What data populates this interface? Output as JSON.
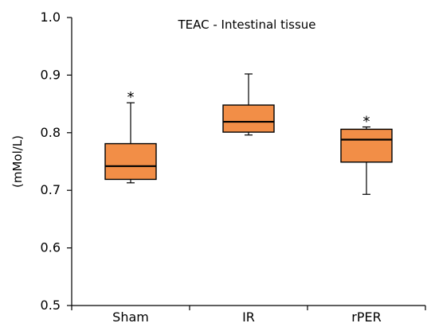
{
  "chart_data": {
    "type": "box",
    "title": "TEAC - Intestinal tissue",
    "xlabel": "",
    "ylabel": "(mMol/L)",
    "ylim": [
      0.5,
      1.0
    ],
    "yticks": [
      0.5,
      0.6,
      0.7,
      0.8,
      0.9,
      1.0
    ],
    "ytick_labels": [
      "0.5",
      "0.6",
      "0.7",
      "0.8",
      "0.9",
      "1.0"
    ],
    "categories": [
      "Sham",
      "IR",
      "rPER"
    ],
    "boxes": [
      {
        "category": "Sham",
        "min": 0.713,
        "q1": 0.719,
        "median": 0.742,
        "q3": 0.781,
        "max": 0.852,
        "annotation": "*"
      },
      {
        "category": "IR",
        "min": 0.796,
        "q1": 0.801,
        "median": 0.819,
        "q3": 0.848,
        "max": 0.902,
        "annotation": ""
      },
      {
        "category": "rPER",
        "min": 0.693,
        "q1": 0.749,
        "median": 0.788,
        "q3": 0.806,
        "max": 0.81,
        "annotation": "*"
      }
    ],
    "box_color": "#F28E47",
    "grid": false,
    "legend": "none"
  }
}
